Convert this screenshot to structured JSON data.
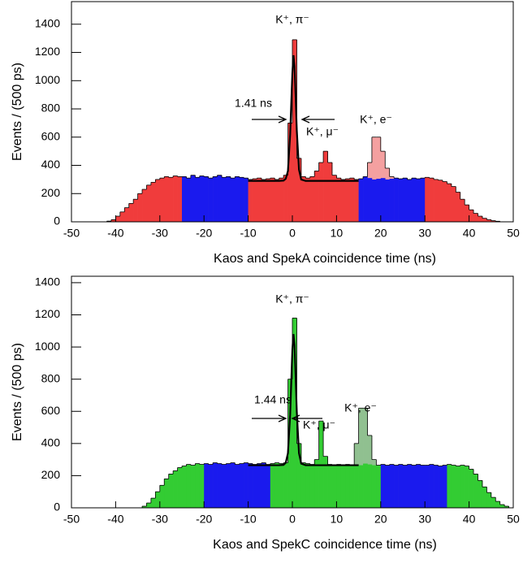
{
  "chart_data": [
    {
      "type": "histogram",
      "xlabel": "Kaos and SpekA coincidence time (ns)",
      "ylabel": "Events / (500 ps)",
      "xlim": [
        -50,
        50
      ],
      "ylim": [
        0,
        1560
      ],
      "xticks": [
        -50,
        -40,
        -30,
        -20,
        -10,
        0,
        10,
        20,
        30,
        40,
        50
      ],
      "yticks": [
        0,
        200,
        400,
        600,
        800,
        1000,
        1200,
        1400
      ],
      "bins": [
        -50,
        -49,
        -48,
        -47,
        -46,
        -45,
        -44,
        -43,
        -42,
        -41,
        -40,
        -39,
        -38,
        -37,
        -36,
        -35,
        -34,
        -33,
        -32,
        -31,
        -30,
        -29,
        -28,
        -27,
        -26,
        -25,
        -24,
        -23,
        -22,
        -21,
        -20,
        -19,
        -18,
        -17,
        -16,
        -15,
        -14,
        -13,
        -12,
        -11,
        -10,
        -9,
        -8,
        -7,
        -6,
        -5,
        -4,
        -3,
        -2,
        -1,
        0,
        1,
        2,
        3,
        4,
        5,
        6,
        7,
        8,
        9,
        10,
        11,
        12,
        13,
        14,
        15,
        16,
        17,
        18,
        19,
        20,
        21,
        22,
        23,
        24,
        25,
        26,
        27,
        28,
        29,
        30,
        31,
        32,
        33,
        34,
        35,
        36,
        37,
        38,
        39,
        40,
        41,
        42,
        43,
        44,
        45,
        46,
        47,
        48,
        49,
        50
      ],
      "series": [
        {
          "color": "#f4a0a0",
          "values": [
            0,
            0,
            0,
            0,
            0,
            0,
            0,
            0,
            5,
            15,
            40,
            70,
            100,
            130,
            160,
            200,
            230,
            260,
            280,
            300,
            310,
            320,
            315,
            325,
            320,
            320,
            310,
            330,
            315,
            325,
            320,
            310,
            320,
            330,
            315,
            320,
            310,
            320,
            315,
            310,
            300,
            305,
            310,
            300,
            305,
            310,
            300,
            310,
            330,
            700,
            1290,
            450,
            320,
            310,
            320,
            360,
            420,
            500,
            420,
            330,
            310,
            300,
            305,
            310,
            300,
            305,
            320,
            420,
            600,
            600,
            500,
            380,
            320,
            310,
            305,
            310,
            300,
            310,
            305,
            310,
            315,
            310,
            300,
            295,
            285,
            270,
            250,
            210,
            160,
            120,
            85,
            60,
            40,
            25,
            15,
            8,
            4,
            0,
            0,
            0
          ]
        },
        {
          "color": "#f03c3c",
          "values": [
            0,
            0,
            0,
            0,
            0,
            0,
            0,
            0,
            5,
            15,
            40,
            70,
            100,
            130,
            160,
            200,
            230,
            260,
            280,
            300,
            310,
            320,
            315,
            325,
            320,
            320,
            310,
            330,
            315,
            325,
            320,
            310,
            320,
            330,
            315,
            320,
            310,
            320,
            315,
            310,
            300,
            305,
            310,
            300,
            305,
            310,
            300,
            310,
            330,
            700,
            1290,
            450,
            320,
            310,
            320,
            360,
            420,
            500,
            420,
            330,
            310,
            300,
            305,
            310,
            300,
            305,
            320,
            310,
            300,
            305,
            310,
            300,
            305,
            310,
            305,
            310,
            300,
            310,
            305,
            310,
            315,
            310,
            300,
            295,
            285,
            270,
            250,
            210,
            160,
            120,
            85,
            60,
            40,
            25,
            15,
            8,
            4,
            0,
            0,
            0
          ]
        }
      ],
      "regions": [
        {
          "start": -25,
          "end": -10,
          "color": "#1a1aee"
        },
        {
          "start": 15,
          "end": 30,
          "color": "#1a1aee"
        }
      ],
      "fit": {
        "x": [
          -10,
          -3,
          -2,
          -1.5,
          -1,
          -0.5,
          0,
          0.25,
          0.5,
          1,
          1.5,
          2,
          3,
          15
        ],
        "values": [
          290,
          290,
          292,
          305,
          360,
          620,
          1050,
          1180,
          1100,
          650,
          370,
          300,
          290,
          290
        ]
      },
      "annotations": [
        "K⁺, π⁻",
        "1.41 ns",
        "K⁺, μ⁻",
        "K⁺, e⁻"
      ]
    },
    {
      "type": "histogram",
      "xlabel": "Kaos and SpekC coincidence time (ns)",
      "ylabel": "Events / (500 ps)",
      "xlim": [
        -50,
        50
      ],
      "ylim": [
        0,
        1440
      ],
      "xticks": [
        -50,
        -40,
        -30,
        -20,
        -10,
        0,
        10,
        20,
        30,
        40,
        50
      ],
      "yticks": [
        0,
        200,
        400,
        600,
        800,
        1000,
        1200,
        1400
      ],
      "bins": [
        -50,
        -49,
        -48,
        -47,
        -46,
        -45,
        -44,
        -43,
        -42,
        -41,
        -40,
        -39,
        -38,
        -37,
        -36,
        -35,
        -34,
        -33,
        -32,
        -31,
        -30,
        -29,
        -28,
        -27,
        -26,
        -25,
        -24,
        -23,
        -22,
        -21,
        -20,
        -19,
        -18,
        -17,
        -16,
        -15,
        -14,
        -13,
        -12,
        -11,
        -10,
        -9,
        -8,
        -7,
        -6,
        -5,
        -4,
        -3,
        -2,
        -1,
        0,
        1,
        2,
        3,
        4,
        5,
        6,
        7,
        8,
        9,
        10,
        11,
        12,
        13,
        14,
        15,
        16,
        17,
        18,
        19,
        20,
        21,
        22,
        23,
        24,
        25,
        26,
        27,
        28,
        29,
        30,
        31,
        32,
        33,
        34,
        35,
        36,
        37,
        38,
        39,
        40,
        41,
        42,
        43,
        44,
        45,
        46,
        47,
        48,
        49,
        50
      ],
      "series": [
        {
          "color": "#90c090",
          "values": [
            0,
            0,
            0,
            0,
            0,
            0,
            0,
            0,
            0,
            0,
            0,
            0,
            0,
            0,
            0,
            0,
            10,
            30,
            60,
            100,
            140,
            180,
            210,
            230,
            250,
            260,
            270,
            265,
            275,
            270,
            275,
            270,
            280,
            275,
            270,
            275,
            280,
            270,
            275,
            280,
            275,
            270,
            275,
            280,
            270,
            275,
            280,
            275,
            280,
            800,
            1180,
            400,
            280,
            275,
            270,
            300,
            540,
            320,
            270,
            265,
            270,
            265,
            270,
            265,
            400,
            620,
            620,
            450,
            300,
            265,
            270,
            265,
            270,
            265,
            270,
            265,
            270,
            265,
            270,
            265,
            265,
            270,
            265,
            260,
            265,
            270,
            265,
            260,
            265,
            260,
            240,
            210,
            170,
            130,
            95,
            65,
            40,
            20,
            10,
            0
          ]
        },
        {
          "color": "#33cc33",
          "values": [
            0,
            0,
            0,
            0,
            0,
            0,
            0,
            0,
            0,
            0,
            0,
            0,
            0,
            0,
            0,
            0,
            10,
            30,
            60,
            100,
            140,
            180,
            210,
            230,
            250,
            260,
            270,
            265,
            275,
            270,
            275,
            270,
            280,
            275,
            270,
            275,
            280,
            270,
            275,
            280,
            275,
            270,
            275,
            280,
            270,
            275,
            280,
            275,
            280,
            800,
            1180,
            400,
            280,
            275,
            270,
            300,
            540,
            320,
            270,
            265,
            270,
            265,
            270,
            265,
            270,
            265,
            275,
            270,
            265,
            265,
            270,
            265,
            270,
            265,
            270,
            265,
            270,
            265,
            270,
            265,
            265,
            270,
            265,
            260,
            265,
            270,
            265,
            260,
            265,
            260,
            240,
            210,
            170,
            130,
            95,
            65,
            40,
            20,
            10,
            0
          ]
        }
      ],
      "regions": [
        {
          "start": -20,
          "end": -5,
          "color": "#1a1aee"
        },
        {
          "start": 20,
          "end": 35,
          "color": "#1a1aee"
        }
      ],
      "fit": {
        "x": [
          -10,
          -3,
          -2,
          -1.5,
          -1,
          -0.5,
          0,
          0.25,
          0.5,
          1,
          1.5,
          2,
          3,
          15
        ],
        "values": [
          265,
          265,
          267,
          280,
          340,
          580,
          980,
          1080,
          1010,
          600,
          340,
          275,
          265,
          265
        ]
      },
      "annotations": [
        "K⁺, π⁻",
        "1.44 ns",
        "K⁺, μ⁻",
        "K⁺, e⁻"
      ]
    }
  ]
}
